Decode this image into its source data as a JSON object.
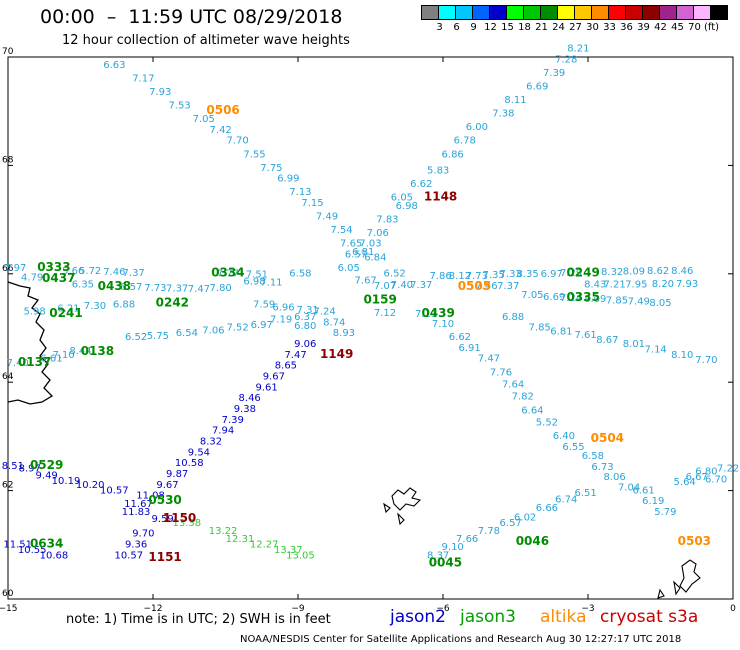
{
  "header": {
    "title": "00:00  –  11:59 UTC 08/29/2018",
    "subtitle": "12 hour collection of altimeter wave heights"
  },
  "colorbar": {
    "unit": "(ft)",
    "levels": [
      {
        "label": "",
        "color": "#808080"
      },
      {
        "label": "3",
        "color": "#00ffff"
      },
      {
        "label": "6",
        "color": "#00c8ff"
      },
      {
        "label": "9",
        "color": "#0064ff"
      },
      {
        "label": "12",
        "color": "#0000c8"
      },
      {
        "label": "15",
        "color": "#00ff00"
      },
      {
        "label": "18",
        "color": "#00c800"
      },
      {
        "label": "21",
        "color": "#008c00"
      },
      {
        "label": "24",
        "color": "#ffff00"
      },
      {
        "label": "27",
        "color": "#ffc800"
      },
      {
        "label": "30",
        "color": "#ff8c00"
      },
      {
        "label": "33",
        "color": "#ff0000"
      },
      {
        "label": "36",
        "color": "#c80000"
      },
      {
        "label": "39",
        "color": "#8c0000"
      },
      {
        "label": "42",
        "color": "#a0228c"
      },
      {
        "label": "45",
        "color": "#d264d2"
      },
      {
        "label": "70",
        "color": "#ffb4ff"
      },
      {
        "label": "",
        "color": "#000000"
      }
    ]
  },
  "axes": {
    "lat_labels": [
      "70",
      "68",
      "66",
      "64",
      "62",
      "60"
    ],
    "lon_labels": [
      "−15",
      "−12",
      "−9",
      "−6",
      "−3",
      "0"
    ]
  },
  "tracks": [
    {
      "color": "#2aa4d8",
      "points": [
        [
          "6.63",
          -12.8,
          69.8
        ],
        [
          "7.17",
          -12.2,
          69.55
        ],
        [
          "7.93",
          -11.85,
          69.3
        ],
        [
          "7.53",
          -11.45,
          69.05
        ],
        [
          "7.05",
          -10.95,
          68.8
        ],
        [
          "7.42",
          -10.6,
          68.6
        ],
        [
          "7.70",
          -10.25,
          68.4
        ],
        [
          "7.55",
          -9.9,
          68.15
        ],
        [
          "7.75",
          -9.55,
          67.9
        ],
        [
          "6.99",
          -9.2,
          67.7
        ],
        [
          "7.13",
          -8.95,
          67.45
        ],
        [
          "7.15",
          -8.7,
          67.25
        ],
        [
          "7.49",
          -8.4,
          67.0
        ],
        [
          "7.54",
          -8.1,
          66.75
        ],
        [
          "7.65",
          -7.9,
          66.5
        ],
        [
          "6.57",
          -7.8,
          66.3
        ],
        [
          "6.05",
          -7.95,
          66.05
        ],
        [
          "6.58",
          -8.95,
          65.95
        ],
        [
          "6.52",
          -7.0,
          65.95
        ],
        [
          "7.03",
          -7.5,
          66.5
        ],
        [
          "7.06",
          -7.35,
          66.7
        ],
        [
          "7.83",
          -7.15,
          66.95
        ],
        [
          "6.98",
          -6.75,
          67.2
        ],
        [
          "6.05",
          -6.85,
          67.35
        ],
        [
          "6.62",
          -6.45,
          67.6
        ],
        [
          "5.83",
          -6.1,
          67.85
        ],
        [
          "6.86",
          -5.8,
          68.15
        ],
        [
          "6.78",
          -5.55,
          68.4
        ],
        [
          "6.00",
          -5.3,
          68.65
        ],
        [
          "7.38",
          -4.75,
          68.9
        ],
        [
          "8.11",
          -4.5,
          69.15
        ],
        [
          "6.69",
          -4.05,
          69.4
        ],
        [
          "7.39",
          -3.7,
          69.65
        ],
        [
          "7.28",
          -3.45,
          69.9
        ],
        [
          "8.21",
          -3.2,
          70.1
        ],
        [
          "6.84",
          -7.4,
          66.25
        ],
        [
          "6.81",
          -7.65,
          66.35
        ]
      ]
    },
    {
      "color": "#2aa4d8",
      "points": [
        [
          "7.86",
          -6.05,
          65.9
        ],
        [
          "8.12",
          -5.65,
          65.9
        ],
        [
          "7.73",
          -5.3,
          65.9
        ],
        [
          "7.35",
          -4.95,
          65.92
        ],
        [
          "7.33",
          -4.6,
          65.94
        ],
        [
          "8.35",
          -4.25,
          65.94
        ],
        [
          "6.97",
          -3.75,
          65.94
        ],
        [
          "7.29",
          -3.35,
          65.96
        ],
        [
          "8.32",
          -2.5,
          65.98
        ],
        [
          "8.09",
          -2.05,
          65.99
        ],
        [
          "8.62",
          -1.55,
          66.0
        ],
        [
          "8.46",
          -1.05,
          66.0
        ],
        [
          "7.46",
          -5.1,
          65.72
        ],
        [
          "7.37",
          -4.65,
          65.72
        ],
        [
          "8.43",
          -2.85,
          65.75
        ],
        [
          "7.21",
          -2.45,
          65.75
        ],
        [
          "7.95",
          -2.0,
          65.75
        ],
        [
          "8.20",
          -1.45,
          65.76
        ],
        [
          "7.93",
          -0.95,
          65.76
        ],
        [
          "7.05",
          -4.15,
          65.55
        ],
        [
          "6.69",
          -3.7,
          65.52
        ],
        [
          "7.24",
          -3.35,
          65.5
        ],
        [
          "8.09",
          -2.85,
          65.48
        ],
        [
          "7.85",
          -2.4,
          65.45
        ],
        [
          "7.49",
          -1.95,
          65.43
        ],
        [
          "8.05",
          -1.5,
          65.41
        ]
      ]
    },
    {
      "color": "#2aa4d8",
      "points": [
        [
          "7.97",
          -14.85,
          66.05
        ],
        [
          "4.79",
          -14.5,
          65.88
        ],
        [
          "5.66",
          -13.65,
          66.0
        ],
        [
          "5.72",
          -13.3,
          66.0
        ],
        [
          "7.46",
          -12.8,
          65.98
        ],
        [
          "7.37",
          -12.4,
          65.96
        ],
        [
          "6.35",
          -13.45,
          65.75
        ],
        [
          "6.57",
          -12.45,
          65.7
        ],
        [
          "7.73",
          -11.95,
          65.68
        ],
        [
          "7.37",
          -11.5,
          65.67
        ],
        [
          "7.47",
          -11.05,
          65.66
        ],
        [
          "7.80",
          -10.6,
          65.68
        ],
        [
          "6.98",
          -9.9,
          65.8
        ],
        [
          "7.11",
          -9.55,
          65.78
        ],
        [
          "7.77",
          -10.45,
          65.95
        ],
        [
          "7.51",
          -9.85,
          65.93
        ],
        [
          "7.67",
          -7.6,
          65.82
        ],
        [
          "7.07",
          -7.2,
          65.72
        ],
        [
          "7.40",
          -6.85,
          65.74
        ],
        [
          "7.37",
          -6.45,
          65.74
        ]
      ]
    },
    {
      "color": "#2aa4d8",
      "points": [
        [
          "5.98",
          -14.45,
          65.25
        ],
        [
          "6.21",
          -13.75,
          65.3
        ],
        [
          "7.30",
          -13.2,
          65.35
        ],
        [
          "6.88",
          -12.6,
          65.38
        ],
        [
          "7.59",
          -9.7,
          65.38
        ],
        [
          "6.96",
          -9.3,
          65.32
        ],
        [
          "7.31",
          -8.8,
          65.28
        ],
        [
          "7.12",
          -7.2,
          65.22
        ],
        [
          "7.11",
          -6.35,
          65.2
        ],
        [
          "7.10",
          -6.0,
          65.02
        ],
        [
          "6.62",
          -5.65,
          64.78
        ],
        [
          "6.91",
          -5.45,
          64.58
        ],
        [
          "7.47",
          -5.05,
          64.38
        ],
        [
          "7.76",
          -4.8,
          64.12
        ],
        [
          "7.64",
          -4.55,
          63.9
        ],
        [
          "7.82",
          -4.35,
          63.68
        ],
        [
          "6.64",
          -4.15,
          63.42
        ],
        [
          "5.52",
          -3.85,
          63.2
        ],
        [
          "6.40",
          -3.5,
          62.95
        ],
        [
          "6.55",
          -3.3,
          62.75
        ],
        [
          "6.58",
          -2.9,
          62.58
        ],
        [
          "6.73",
          -2.7,
          62.38
        ],
        [
          "8.06",
          -2.45,
          62.2
        ],
        [
          "7.04",
          -2.15,
          62.0
        ],
        [
          "6.61",
          -1.85,
          61.95
        ],
        [
          "6.19",
          -1.65,
          61.75
        ],
        [
          "5.79",
          -1.4,
          61.55
        ],
        [
          "6.70",
          -0.35,
          62.15
        ],
        [
          "6.80",
          -0.55,
          62.3
        ],
        [
          "7.22",
          -0.1,
          62.35
        ],
        [
          "5.64",
          -1.0,
          62.1
        ],
        [
          "6.67",
          -0.75,
          62.2
        ],
        [
          "6.51",
          -3.05,
          61.9
        ],
        [
          "6.74",
          -3.45,
          61.78
        ],
        [
          "6.66",
          -3.85,
          61.62
        ],
        [
          "6.02",
          -4.3,
          61.45
        ],
        [
          "6.57",
          -4.6,
          61.35
        ],
        [
          "7.78",
          -5.05,
          61.2
        ],
        [
          "7.66",
          -5.5,
          61.05
        ],
        [
          "9.10",
          -5.8,
          60.9
        ],
        [
          "8.37",
          -6.1,
          60.75
        ],
        [
          "6.88",
          -4.55,
          65.15
        ],
        [
          "7.85",
          -4.0,
          64.95
        ],
        [
          "6.81",
          -3.55,
          64.88
        ],
        [
          "7.61",
          -3.05,
          64.82
        ],
        [
          "8.67",
          -2.6,
          64.72
        ],
        [
          "8.01",
          -2.05,
          64.65
        ],
        [
          "7.14",
          -1.6,
          64.55
        ],
        [
          "8.10",
          -1.05,
          64.45
        ],
        [
          "7.70",
          -0.55,
          64.35
        ]
      ]
    },
    {
      "color": "#2aa4d8",
      "points": [
        [
          "6.52",
          -12.35,
          64.78
        ],
        [
          "5.75",
          -11.9,
          64.8
        ],
        [
          "6.54",
          -11.3,
          64.85
        ],
        [
          "7.06",
          -10.75,
          64.9
        ],
        [
          "7.52",
          -10.25,
          64.95
        ],
        [
          "6.97",
          -9.75,
          65.0
        ],
        [
          "7.19",
          -9.35,
          65.1
        ],
        [
          "6.37",
          -8.85,
          65.15
        ],
        [
          "7.24",
          -8.45,
          65.25
        ],
        [
          "6.80",
          -8.85,
          64.98
        ],
        [
          "8.74",
          -8.25,
          65.05
        ],
        [
          "8.93",
          -8.05,
          64.85
        ],
        [
          "7.10",
          -13.85,
          64.45
        ],
        [
          "6.61",
          -14.1,
          64.38
        ],
        [
          "7.40",
          -14.8,
          64.3
        ],
        [
          "8.44",
          -13.5,
          64.52
        ]
      ]
    },
    {
      "color": "#0000c8",
      "points": [
        [
          "9.06",
          -8.85,
          64.65
        ],
        [
          "7.47",
          -9.05,
          64.45
        ],
        [
          "8.65",
          -9.25,
          64.25
        ],
        [
          "9.67",
          -9.5,
          64.05
        ],
        [
          "9.61",
          -9.65,
          63.85
        ],
        [
          "8.46",
          -10.0,
          63.65
        ],
        [
          "9.38",
          -10.1,
          63.45
        ],
        [
          "7.39",
          -10.35,
          63.25
        ],
        [
          "7.94",
          -10.55,
          63.05
        ],
        [
          "8.32",
          -10.8,
          62.85
        ],
        [
          "9.54",
          -11.05,
          62.65
        ],
        [
          "10.58",
          -11.25,
          62.45
        ],
        [
          "9.87",
          -11.5,
          62.25
        ],
        [
          "9.67",
          -11.7,
          62.05
        ],
        [
          "11.08",
          -12.05,
          61.85
        ],
        [
          "11.67",
          -12.3,
          61.7
        ],
        [
          "11.83",
          -12.35,
          61.55
        ],
        [
          "10.57",
          -12.8,
          61.95
        ],
        [
          "10.20",
          -13.3,
          62.05
        ],
        [
          "10.19",
          -13.8,
          62.12
        ],
        [
          "9.49",
          -14.2,
          62.22
        ],
        [
          "8.97",
          -14.55,
          62.35
        ],
        [
          "8.51",
          -14.9,
          62.4
        ],
        [
          "9.59",
          -11.8,
          61.42
        ],
        [
          "9.70",
          -12.2,
          61.15
        ],
        [
          "9.36",
          -12.35,
          60.95
        ],
        [
          "10.57",
          -12.5,
          60.75
        ],
        [
          "11.51",
          -14.8,
          60.95
        ],
        [
          "10.55",
          -14.5,
          60.85
        ],
        [
          "10.68",
          -14.05,
          60.75
        ]
      ]
    },
    {
      "color": "#33cc33",
      "points": [
        [
          "13.38",
          -11.3,
          61.35
        ],
        [
          "13.22",
          -10.55,
          61.2
        ],
        [
          "12.31",
          -10.2,
          61.05
        ],
        [
          "12.27",
          -9.7,
          60.95
        ],
        [
          "13.37",
          -9.2,
          60.85
        ],
        [
          "13.05",
          -8.95,
          60.75
        ]
      ]
    }
  ],
  "pass_times": [
    {
      "label": "0506",
      "color": "#ff8c00",
      "lon": -10.55,
      "lat": 68.95
    },
    {
      "label": "1148",
      "color": "#8c0000",
      "lon": -6.05,
      "lat": 67.35
    },
    {
      "label": "0333",
      "color": "#008c00",
      "lon": -14.05,
      "lat": 66.05
    },
    {
      "label": "0437",
      "color": "#008c00",
      "lon": -13.95,
      "lat": 65.85
    },
    {
      "label": "0334",
      "color": "#008c00",
      "lon": -10.45,
      "lat": 65.95
    },
    {
      "label": "0438",
      "color": "#008c00",
      "lon": -12.8,
      "lat": 65.7
    },
    {
      "label": "0242",
      "color": "#008c00",
      "lon": -11.6,
      "lat": 65.4
    },
    {
      "label": "0241",
      "color": "#008c00",
      "lon": -13.8,
      "lat": 65.2
    },
    {
      "label": "0249",
      "color": "#008c00",
      "lon": -3.1,
      "lat": 65.95
    },
    {
      "label": "0505",
      "color": "#ff8c00",
      "lon": -5.35,
      "lat": 65.7
    },
    {
      "label": "0335",
      "color": "#008c00",
      "lon": -3.1,
      "lat": 65.5
    },
    {
      "label": "0159",
      "color": "#008c00",
      "lon": -7.3,
      "lat": 65.45
    },
    {
      "label": "0439",
      "color": "#008c00",
      "lon": -6.1,
      "lat": 65.2
    },
    {
      "label": "1149",
      "color": "#8c0000",
      "lon": -8.2,
      "lat": 64.45
    },
    {
      "label": "0138",
      "color": "#008c00",
      "lon": -13.15,
      "lat": 64.5
    },
    {
      "label": "0137",
      "color": "#008c00",
      "lon": -14.45,
      "lat": 64.3
    },
    {
      "label": "0504",
      "color": "#ff8c00",
      "lon": -2.6,
      "lat": 62.9
    },
    {
      "label": "0529",
      "color": "#008c00",
      "lon": -14.2,
      "lat": 62.4
    },
    {
      "label": "0530",
      "color": "#008c00",
      "lon": -11.75,
      "lat": 61.75
    },
    {
      "label": "1150",
      "color": "#8c0000",
      "lon": -11.45,
      "lat": 61.42
    },
    {
      "label": "0634",
      "color": "#008c00",
      "lon": -14.2,
      "lat": 60.95
    },
    {
      "label": "1151",
      "color": "#8c0000",
      "lon": -11.75,
      "lat": 60.7
    },
    {
      "label": "0046",
      "color": "#008c00",
      "lon": -4.15,
      "lat": 61.0
    },
    {
      "label": "0045",
      "color": "#008c00",
      "lon": -5.95,
      "lat": 60.6
    },
    {
      "label": "0503",
      "color": "#ff8c00",
      "lon": -0.8,
      "lat": 61.0
    }
  ],
  "footer": {
    "note": "note:  1) Time is in UTC;  2) SWH is in feet",
    "legend": [
      {
        "label": "jason2",
        "color": "#0000c8"
      },
      {
        "label": "jason3",
        "color": "#00a000"
      },
      {
        "label": "altika",
        "color": "#ff8c00"
      },
      {
        "label": "cryosat s3a",
        "color": "#c80000"
      }
    ],
    "credit": "NOAA/NESDIS Center for Satellite Applications and Research       Aug 30 12:27:17 UTC 2018"
  }
}
